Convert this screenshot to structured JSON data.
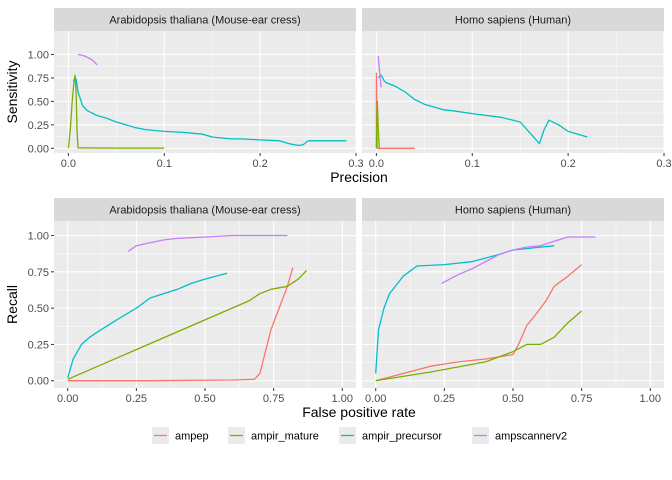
{
  "chart_data": [
    {
      "type": "line",
      "xlabel": "Precision",
      "ylabel": "Sensitivity",
      "xticks": [
        "0.0",
        "0.1",
        "0.2",
        "0.3"
      ],
      "yticks": [
        "0.00",
        "0.25",
        "0.50",
        "0.75",
        "1.00"
      ],
      "xlim": [
        -0.015,
        0.3
      ],
      "ylim": [
        -0.05,
        1.25
      ],
      "facets": [
        {
          "title": "Arabidopsis thaliana (Mouse-ear cress)",
          "series": [
            {
              "name": "ampir_mature",
              "x": [
                0.0,
                0.002,
                0.004,
                0.006,
                0.007,
                0.008,
                0.009,
                0.01,
                0.05,
                0.1
              ],
              "y": [
                0.0,
                0.2,
                0.5,
                0.72,
                0.78,
                0.6,
                0.2,
                0.005,
                0.002,
                0.002
              ]
            },
            {
              "name": "ampir_precursor",
              "x": [
                0.005,
                0.008,
                0.01,
                0.015,
                0.02,
                0.03,
                0.04,
                0.05,
                0.06,
                0.07,
                0.08,
                0.09,
                0.1,
                0.12,
                0.13,
                0.14,
                0.15,
                0.16,
                0.17,
                0.18,
                0.2,
                0.22,
                0.23,
                0.24,
                0.245,
                0.25,
                0.29
              ],
              "y": [
                0.72,
                0.74,
                0.6,
                0.45,
                0.4,
                0.35,
                0.32,
                0.28,
                0.25,
                0.22,
                0.2,
                0.19,
                0.18,
                0.17,
                0.16,
                0.15,
                0.12,
                0.11,
                0.1,
                0.1,
                0.09,
                0.08,
                0.05,
                0.03,
                0.04,
                0.08,
                0.08
              ]
            },
            {
              "name": "ampscannerv2",
              "x": [
                0.01,
                0.015,
                0.02,
                0.025,
                0.03
              ],
              "y": [
                1.0,
                0.99,
                0.97,
                0.94,
                0.89
              ]
            }
          ]
        },
        {
          "title": "Homo sapiens (Human)",
          "series": [
            {
              "name": "ampep",
              "x": [
                0.0,
                0.0,
                0.001,
                0.002,
                0.04
              ],
              "y": [
                0.0,
                0.8,
                0.0,
                0.0,
                0.0
              ]
            },
            {
              "name": "ampir_mature",
              "x": [
                0.0,
                0.001,
                0.002,
                0.003
              ],
              "y": [
                0.0,
                0.5,
                0.2,
                0.0
              ]
            },
            {
              "name": "ampir_precursor",
              "x": [
                0.002,
                0.005,
                0.008,
                0.01,
                0.02,
                0.03,
                0.04,
                0.05,
                0.06,
                0.07,
                0.08,
                0.1,
                0.13,
                0.15,
                0.17,
                0.175,
                0.18,
                0.19,
                0.2,
                0.22
              ],
              "y": [
                0.75,
                0.78,
                0.72,
                0.7,
                0.66,
                0.6,
                0.52,
                0.47,
                0.44,
                0.41,
                0.4,
                0.37,
                0.33,
                0.28,
                0.05,
                0.2,
                0.3,
                0.25,
                0.18,
                0.12
              ]
            },
            {
              "name": "ampscannerv2",
              "x": [
                0.002,
                0.003,
                0.004,
                0.005
              ],
              "y": [
                0.98,
                0.85,
                0.75,
                0.65
              ]
            }
          ]
        }
      ]
    },
    {
      "type": "line",
      "xlabel": "False positive rate",
      "ylabel": "Recall",
      "xticks": [
        "0.00",
        "0.25",
        "0.50",
        "0.75",
        "1.00"
      ],
      "yticks": [
        "0.00",
        "0.25",
        "0.50",
        "0.75",
        "1.00"
      ],
      "xlim": [
        -0.05,
        1.05
      ],
      "ylim": [
        -0.05,
        1.1
      ],
      "facets": [
        {
          "title": "Arabidopsis thaliana (Mouse-ear cress)",
          "series": [
            {
              "name": "ampep",
              "x": [
                0.0,
                0.3,
                0.6,
                0.68,
                0.7,
                0.72,
                0.74,
                0.76,
                0.78,
                0.8,
                0.82
              ],
              "y": [
                0.0,
                0.0,
                0.005,
                0.01,
                0.05,
                0.2,
                0.35,
                0.45,
                0.55,
                0.65,
                0.78
              ]
            },
            {
              "name": "ampir_mature",
              "x": [
                0.0,
                0.66,
                0.7,
                0.74,
                0.8,
                0.84,
                0.87
              ],
              "y": [
                0.01,
                0.55,
                0.6,
                0.63,
                0.65,
                0.7,
                0.76
              ]
            },
            {
              "name": "ampir_precursor",
              "x": [
                0.0,
                0.02,
                0.05,
                0.08,
                0.12,
                0.18,
                0.25,
                0.3,
                0.35,
                0.4,
                0.45,
                0.5,
                0.58
              ],
              "y": [
                0.02,
                0.15,
                0.25,
                0.3,
                0.35,
                0.42,
                0.5,
                0.57,
                0.6,
                0.63,
                0.67,
                0.7,
                0.74
              ]
            },
            {
              "name": "ampscannerv2",
              "x": [
                0.22,
                0.25,
                0.3,
                0.35,
                0.4,
                0.5,
                0.6,
                0.8
              ],
              "y": [
                0.89,
                0.93,
                0.95,
                0.97,
                0.98,
                0.99,
                1.0,
                1.0
              ]
            }
          ]
        },
        {
          "title": "Homo sapiens (Human)",
          "series": [
            {
              "name": "ampep",
              "x": [
                0.0,
                0.1,
                0.2,
                0.3,
                0.4,
                0.5,
                0.52,
                0.55,
                0.58,
                0.62,
                0.65,
                0.7,
                0.75
              ],
              "y": [
                0.0,
                0.05,
                0.1,
                0.13,
                0.15,
                0.18,
                0.25,
                0.38,
                0.45,
                0.55,
                0.65,
                0.72,
                0.8
              ]
            },
            {
              "name": "ampir_mature",
              "x": [
                0.0,
                0.2,
                0.4,
                0.5,
                0.55,
                0.6,
                0.65,
                0.7,
                0.75
              ],
              "y": [
                0.0,
                0.06,
                0.13,
                0.2,
                0.25,
                0.25,
                0.3,
                0.4,
                0.48
              ]
            },
            {
              "name": "ampir_precursor",
              "x": [
                0.0,
                0.01,
                0.03,
                0.05,
                0.08,
                0.1,
                0.15,
                0.25,
                0.35,
                0.45,
                0.5,
                0.55,
                0.6,
                0.65
              ],
              "y": [
                0.05,
                0.35,
                0.5,
                0.6,
                0.67,
                0.72,
                0.79,
                0.8,
                0.82,
                0.87,
                0.9,
                0.91,
                0.92,
                0.93
              ]
            },
            {
              "name": "ampscannerv2",
              "x": [
                0.24,
                0.3,
                0.35,
                0.4,
                0.45,
                0.5,
                0.55,
                0.6,
                0.65,
                0.7,
                0.8
              ],
              "y": [
                0.67,
                0.73,
                0.77,
                0.82,
                0.87,
                0.9,
                0.92,
                0.93,
                0.96,
                0.99,
                0.99
              ]
            }
          ]
        }
      ]
    }
  ],
  "legend": {
    "position": "bottom",
    "entries": [
      {
        "name": "ampep",
        "color": "#F8766D"
      },
      {
        "name": "ampir_mature",
        "color": "#7CAE00"
      },
      {
        "name": "ampir_precursor",
        "color": "#00BFC4"
      },
      {
        "name": "ampscannerv2",
        "color": "#C77CFF"
      }
    ]
  },
  "style": {
    "panel_background": "#EBEBEB",
    "strip_background": "#D9D9D9",
    "grid_color": "#FFFFFF"
  }
}
